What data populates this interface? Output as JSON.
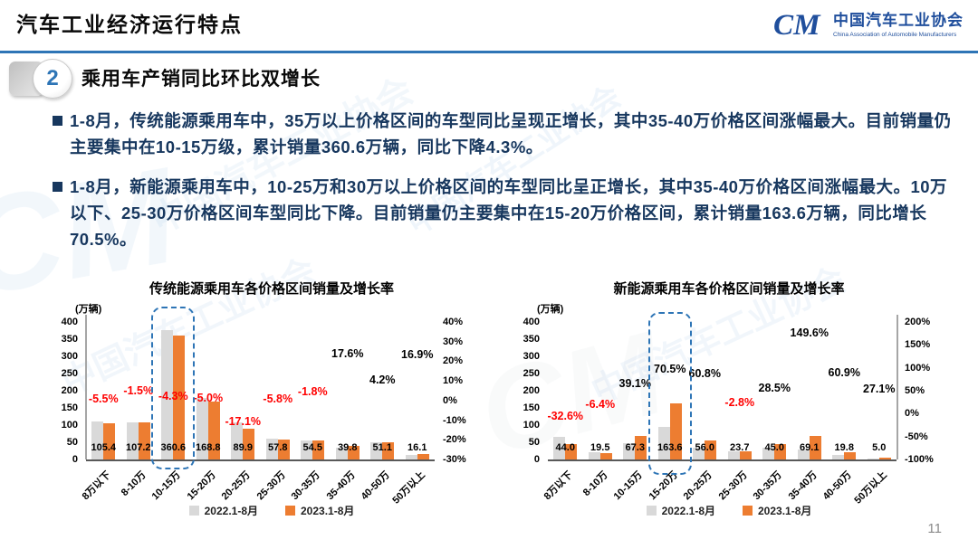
{
  "header": {
    "title": "汽车工业经济运行特点"
  },
  "logo": {
    "mark": "CM",
    "org_cn": "中国汽车工业协会",
    "org_en": "China Association of Automobile Manufacturers"
  },
  "section": {
    "number": "2",
    "title": "乘用车产销同比环比双增长"
  },
  "bullets": [
    "1-8月，传统能源乘用车中，35万以上价格区间的车型同比呈现正增长，其中35-40万价格区间涨幅最大。目前销量仍主要集中在10-15万级，累计销量360.6万辆，同比下降4.3%。",
    "1-8月，新能源乘用车中，10-25万和30万以上价格区间的车型同比呈正增长，其中35-40万价格区间涨幅最大。10万以下、25-30万价格区间车型同比下降。目前销量仍主要集中在15-20万价格区间，累计销量163.6万辆，同比增长70.5%。"
  ],
  "watermark": {
    "text_cn": "中国汽车工业协会",
    "mark": "CM"
  },
  "page_number": "11",
  "colors": {
    "accent": "#2E75B6",
    "bar_2022": "#D9D9D9",
    "bar_2023": "#ED7D31",
    "negative_label": "#FF0000",
    "positive_label": "#000000",
    "body_text": "#17375E"
  },
  "chart_data": [
    {
      "type": "bar",
      "title": "传统能源乘用车各价格区间销量及增长率",
      "unit_label": "(万辆)",
      "categories": [
        "8万以下",
        "8-10万",
        "10-15万",
        "15-20万",
        "20-25万",
        "25-30万",
        "30-35万",
        "35-40万",
        "40-50万",
        "50万以上"
      ],
      "series": [
        {
          "name": "2022.1-8月",
          "color": "#D9D9D9",
          "estimated": true,
          "values": [
            111.5,
            108.8,
            376.8,
            177.7,
            108.4,
            61.4,
            55.5,
            33.8,
            49.0,
            13.8
          ]
        },
        {
          "name": "2023.1-8月",
          "color": "#ED7D31",
          "values": [
            105.4,
            107.2,
            360.6,
            168.8,
            89.9,
            57.8,
            54.5,
            39.8,
            51.1,
            16.1
          ]
        }
      ],
      "value_labels": [
        "105.4",
        "107.2",
        "360.6",
        "168.8",
        "89.9",
        "57.8",
        "54.5",
        "39.8",
        "51.1",
        "16.1"
      ],
      "growth_rate_labels": [
        "-5.5%",
        "-1.5%",
        "-4.3%",
        "-5.0%",
        "-17.1%",
        "-5.8%",
        "-1.8%",
        "17.6%",
        "4.2%",
        "16.9%"
      ],
      "growth_rate_values": [
        -5.5,
        -1.5,
        -4.3,
        -5.0,
        -17.1,
        -5.8,
        -1.8,
        17.6,
        4.2,
        16.9
      ],
      "left_axis": {
        "min": 0,
        "max": 400,
        "ticks": [
          "400",
          "350",
          "300",
          "250",
          "200",
          "150",
          "100",
          "50",
          "0"
        ]
      },
      "right_axis": {
        "min": -30,
        "max": 40,
        "ticks": [
          "40%",
          "30%",
          "20%",
          "10%",
          "0%",
          "-10%",
          "-20%",
          "-30%"
        ]
      },
      "highlight_category_index": 2,
      "axis_lines": {
        "left": true,
        "right": false
      },
      "legend": [
        {
          "label": "2022.1-8月",
          "color": "#D9D9D9"
        },
        {
          "label": "2023.1-8月",
          "color": "#ED7D31"
        }
      ]
    },
    {
      "type": "bar",
      "title": "新能源乘用车各价格区间销量及增长率",
      "unit_label": "(万辆)",
      "categories": [
        "8万以下",
        "8-10万",
        "10-15万",
        "15-20万",
        "20-25万",
        "25-30万",
        "30-35万",
        "35-40万",
        "40-50万",
        "50万以上"
      ],
      "series": [
        {
          "name": "2022.1-8月",
          "color": "#D9D9D9",
          "estimated": true,
          "values": [
            65.3,
            20.8,
            48.4,
            96.0,
            34.8,
            24.4,
            35.0,
            27.7,
            12.3,
            3.9
          ]
        },
        {
          "name": "2023.1-8月",
          "color": "#ED7D31",
          "values": [
            44.0,
            19.5,
            67.3,
            163.6,
            56.0,
            23.7,
            45.0,
            69.1,
            19.8,
            5.0
          ]
        }
      ],
      "value_labels": [
        "44.0",
        "19.5",
        "67.3",
        "163.6",
        "56.0",
        "23.7",
        "45.0",
        "69.1",
        "19.8",
        "5.0"
      ],
      "growth_rate_labels": [
        "-32.6%",
        "-6.4%",
        "39.1%",
        "70.5%",
        "60.8%",
        "-2.8%",
        "28.5%",
        "149.6%",
        "60.9%",
        "27.1%"
      ],
      "growth_rate_values": [
        -32.6,
        -6.4,
        39.1,
        70.5,
        60.8,
        -2.8,
        28.5,
        149.6,
        60.9,
        27.1
      ],
      "left_axis": {
        "min": 0,
        "max": 400,
        "ticks": [
          "400",
          "350",
          "300",
          "250",
          "200",
          "150",
          "100",
          "50",
          "0"
        ]
      },
      "right_axis": {
        "min": -100,
        "max": 200,
        "ticks": [
          "200%",
          "150%",
          "100%",
          "50%",
          "0%",
          "-50%",
          "-100%"
        ]
      },
      "highlight_category_index": 3,
      "axis_lines": {
        "left": false,
        "right": true
      },
      "legend": [
        {
          "label": "2022.1-8月",
          "color": "#D9D9D9"
        },
        {
          "label": "2023.1-8月",
          "color": "#ED7D31"
        }
      ]
    }
  ]
}
